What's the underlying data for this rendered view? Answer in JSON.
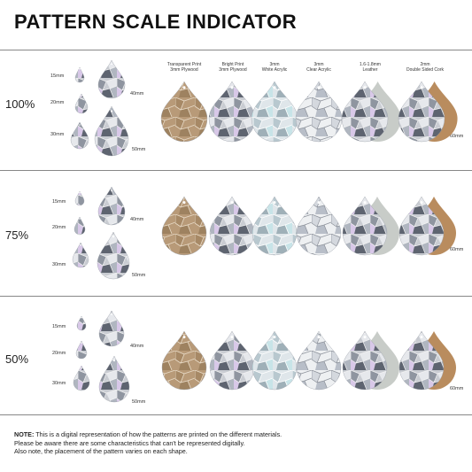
{
  "title": "PATTERN SCALE INDICATOR",
  "materials": [
    {
      "line1": "Transparent Print",
      "line2": "3mm Plywood"
    },
    {
      "line1": "Bright Print",
      "line2": "3mm Plywood"
    },
    {
      "line1": "3mm",
      "line2": "White Acrylic"
    },
    {
      "line1": "3mm",
      "line2": "Clear Acrylic"
    },
    {
      "line1": "1.6-1.8mm",
      "line2": "Leather"
    },
    {
      "line1": "2mm",
      "line2": "Double Sided Cork"
    }
  ],
  "rows": [
    {
      "scale": "100%",
      "sizes": [
        "15mm",
        "20mm",
        "30mm"
      ],
      "big_sizes": [
        "40mm",
        "50mm"
      ],
      "end_size": "60mm"
    },
    {
      "scale": "75%",
      "sizes": [
        "15mm",
        "20mm",
        "30mm"
      ],
      "big_sizes": [
        "40mm",
        "50mm"
      ],
      "end_size": "60mm"
    },
    {
      "scale": "50%",
      "sizes": [
        "15mm",
        "20mm",
        "30mm"
      ],
      "big_sizes": [
        "40mm",
        "50mm"
      ],
      "end_size": "60mm"
    }
  ],
  "note": {
    "label": "NOTE:",
    "line1": " This is a digital representation of how the patterns are printed on the different materials.",
    "line2": "Please be aware there are some characteristics that can't be represented digitally.",
    "line3": "Also note, the placement of the pattern varies on each shape."
  }
}
